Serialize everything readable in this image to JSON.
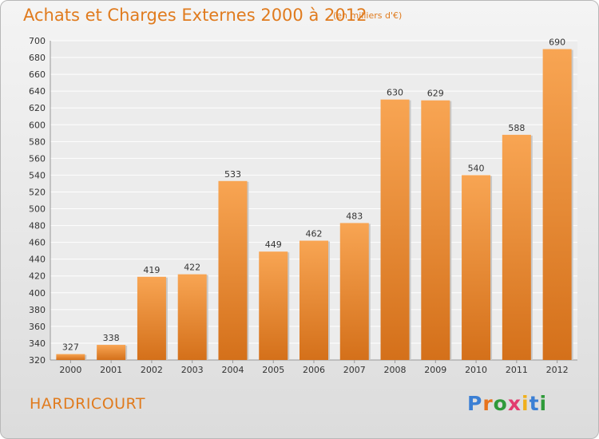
{
  "header": {
    "title": "Achats et Charges Externes 2000 à 2012",
    "unit": "(en milliers d'€)"
  },
  "footer": {
    "city": "HARDRICOURT",
    "logo_letters": [
      "P",
      "r",
      "o",
      "x",
      "i",
      "t",
      "i"
    ],
    "logo_colors": [
      "#3b7fd4",
      "#e8731c",
      "#2f9a3a",
      "#e23b6e",
      "#f0b01c",
      "#3b7fd4",
      "#2f9a3a"
    ]
  },
  "colors": {
    "bar_light": "#f8a553",
    "bar_dark": "#d4701a",
    "accent": "#e07b1e"
  },
  "chart_data": {
    "type": "bar",
    "title": "Achats et Charges Externes 2000 à 2012",
    "subtitle": "(en milliers d'€)",
    "categories": [
      "2000",
      "2001",
      "2002",
      "2003",
      "2004",
      "2005",
      "2006",
      "2007",
      "2008",
      "2009",
      "2010",
      "2011",
      "2012"
    ],
    "values": [
      327,
      338,
      419,
      422,
      533,
      449,
      462,
      483,
      630,
      629,
      540,
      588,
      690
    ],
    "ylim": [
      320,
      700
    ],
    "yticks": [
      320,
      340,
      360,
      380,
      400,
      420,
      440,
      460,
      480,
      500,
      520,
      540,
      560,
      580,
      600,
      620,
      640,
      660,
      680,
      700
    ],
    "grid": true,
    "legend": "none"
  }
}
